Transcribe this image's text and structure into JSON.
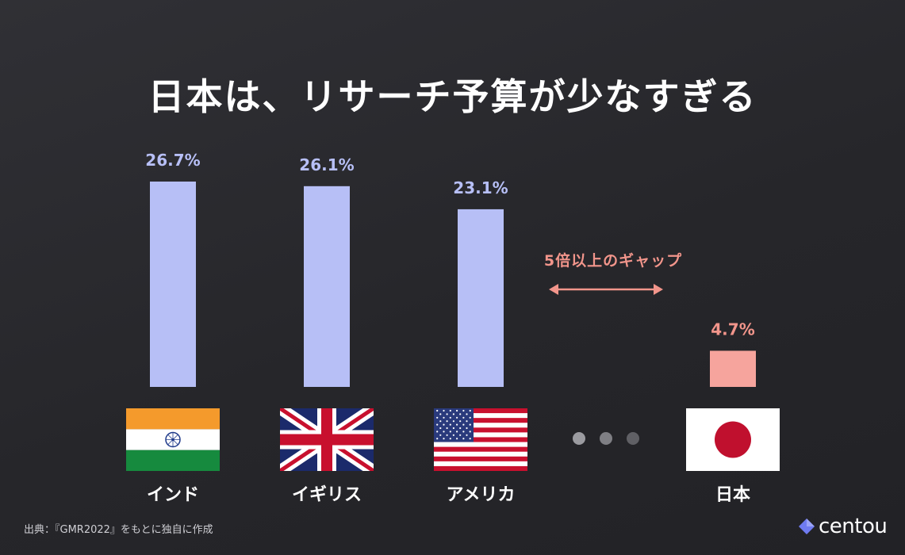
{
  "title": "日本は、リサーチ予算が少なすぎる",
  "gap_annotation": "5倍以上のギャップ",
  "source": "出典：『GMR2022』をもとに独自に作成",
  "logo_text": "centou",
  "colors": {
    "bar_default": "#b7bff6",
    "bar_highlight": "#f6a49d",
    "value_default": "#b7bff6",
    "value_highlight": "#f2958b",
    "arrow": "#f2958b"
  },
  "countries": [
    "インド",
    "イギリス",
    "アメリカ",
    "日本"
  ],
  "chart_data": {
    "type": "bar",
    "categories": [
      "インド",
      "イギリス",
      "アメリカ",
      "日本"
    ],
    "values": [
      26.7,
      26.1,
      23.1,
      4.7
    ],
    "value_labels": [
      "26.7%",
      "26.1%",
      "23.1%",
      "4.7%"
    ],
    "title": "日本は、リサーチ予算が少なすぎる",
    "xlabel": "",
    "ylabel": "",
    "highlight": "日本",
    "grid": false
  }
}
